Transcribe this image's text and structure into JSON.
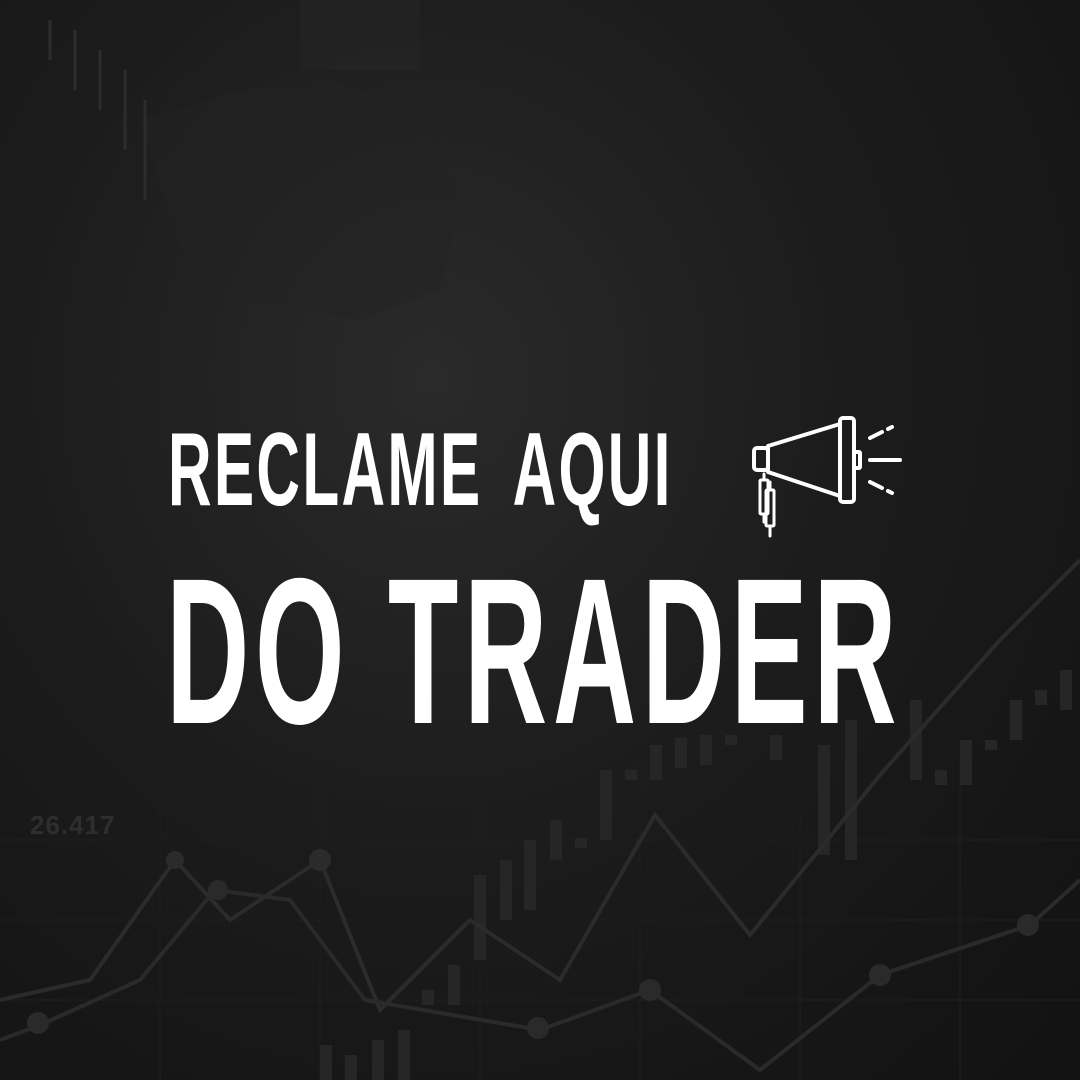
{
  "headline": {
    "line1_word1": "RECLAME",
    "line1_word2": "AQUI",
    "line2": "DO TRADER"
  },
  "background": {
    "chart_number": "26.417"
  },
  "icons": {
    "megaphone": "megaphone-with-candlestick-icon"
  },
  "colors": {
    "text": "#ffffff",
    "background": "#151515"
  }
}
